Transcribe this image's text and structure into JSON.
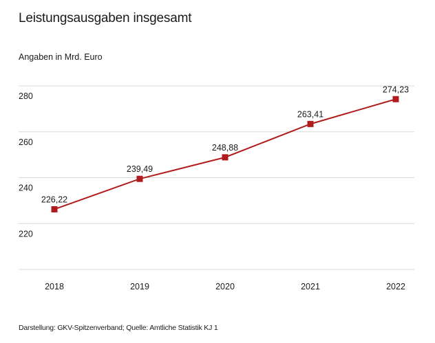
{
  "chart_data": {
    "type": "line",
    "title": "Leistungsausgaben insgesamt",
    "subtitle": "Angaben in Mrd. Euro",
    "xlabel": "",
    "ylabel": "Angaben in Mrd. Euro",
    "categories": [
      "2018",
      "2019",
      "2020",
      "2021",
      "2022"
    ],
    "series": [
      {
        "name": "Leistungsausgaben insgesamt",
        "values": [
          226.22,
          239.49,
          248.88,
          263.41,
          274.23
        ],
        "labels": [
          "226,22",
          "239,49",
          "248,88",
          "263,41",
          "274,23"
        ],
        "color": "#b01c1c"
      }
    ],
    "ylim": [
      200,
      280
    ],
    "yticks": [
      220,
      240,
      260,
      280
    ],
    "ytick_labels": [
      "220",
      "240",
      "260",
      "280"
    ],
    "grid": true,
    "legend": "none",
    "source": "Darstellung: GKV-Spitzenverband; Quelle: Amtliche Statistik KJ 1"
  },
  "colors": {
    "line": "#b01c1c",
    "grid": "#d9d9d9",
    "text": "#1a1a1a"
  }
}
